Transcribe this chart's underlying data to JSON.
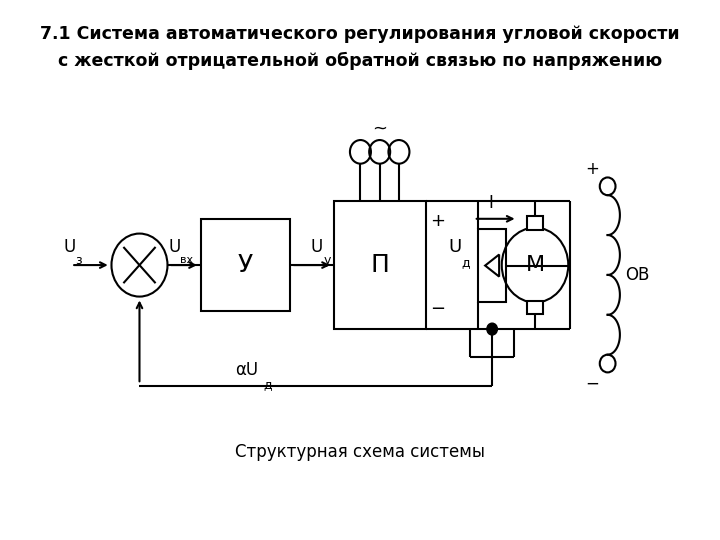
{
  "title_line1": "7.1 Система автоматического регулирования угловой скорости",
  "title_line2": "с жесткой отрицательной обратной связью по напряжению",
  "caption": "Структурная схема системы",
  "bg_color": "#ffffff",
  "line_color": "#000000",
  "figsize": [
    7.2,
    5.4
  ],
  "dpi": 100
}
